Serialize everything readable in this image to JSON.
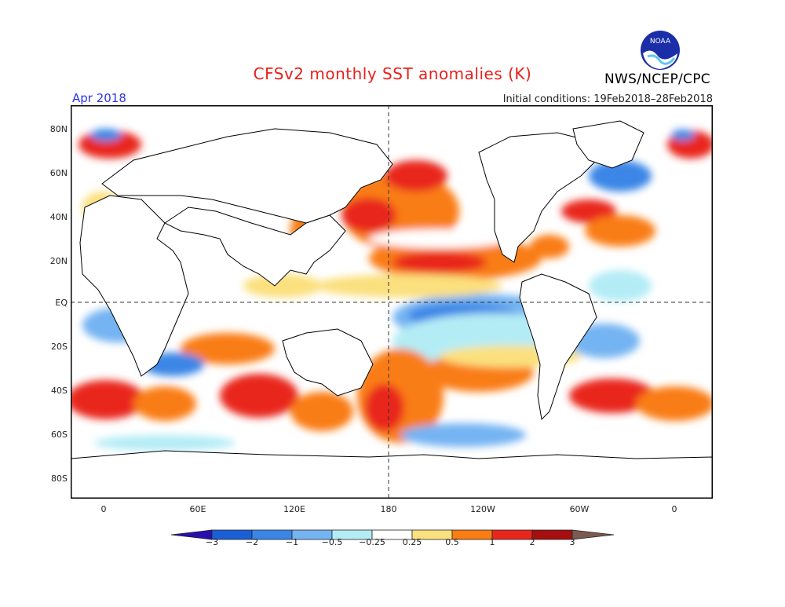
{
  "title": "CFSv2 monthly SST anomalies (K)",
  "valid_month": "Apr 2018",
  "initial_conditions": "Initial conditions: 19Feb2018–28Feb2018",
  "agency": "NWS/NCEP/CPC",
  "logo_text": "NOAA",
  "axes": {
    "lat_labels": [
      "80N",
      "60N",
      "40N",
      "20N",
      "EQ",
      "20S",
      "40S",
      "60S",
      "80S"
    ],
    "lon_labels": [
      "0",
      "60E",
      "120E",
      "180",
      "120W",
      "60W",
      "0"
    ]
  },
  "colorbar": {
    "labels": [
      "−3",
      "−2",
      "−1",
      "−0.5",
      "−0.25",
      "0.25",
      "0.5",
      "1",
      "2",
      "3"
    ],
    "colors": {
      "below_neg3": "#2a0fb0",
      "neg3_neg2": "#1b5fd6",
      "neg2_neg1": "#3a86e6",
      "neg1_neg05": "#74b4f2",
      "neg05_neg025": "#b4ecf6",
      "neg025_025": "#ffffff",
      "p025_05": "#fbe07e",
      "p05_1": "#f97d12",
      "p1_2": "#e9261a",
      "p2_3": "#a50f0f",
      "above3": "#7c5a52"
    }
  },
  "colors": {
    "title": "#e8201a",
    "month": "#2a33e8",
    "land": "#ffffff",
    "coast": "#000000"
  }
}
